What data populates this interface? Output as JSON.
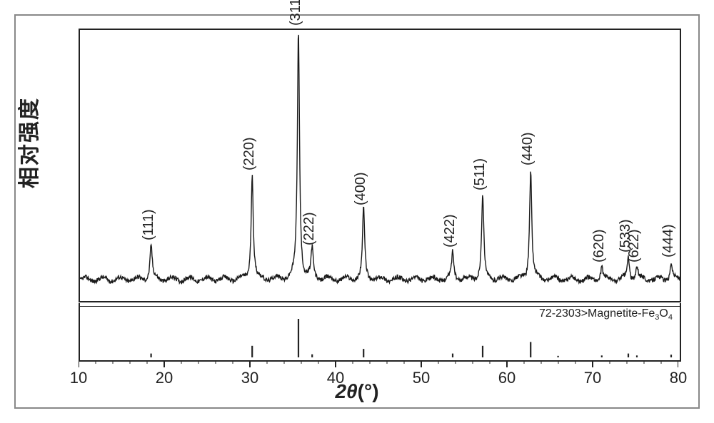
{
  "chart": {
    "type": "xrd",
    "title": "",
    "y_label": "相对强度",
    "x_label_prefix": "2",
    "x_label_theta": "θ",
    "x_label_unit": "(°)",
    "x_min": 10,
    "x_max": 80,
    "x_tick_step": 10,
    "x_ticks": [
      10,
      20,
      30,
      40,
      50,
      60,
      70,
      80
    ],
    "x_minor_step": 2,
    "line_color": "#1a1a1a",
    "line_width": 1.4,
    "background": "#ffffff",
    "border_color": "#222222",
    "baseline_y": 0.08,
    "noise_amp": 0.02,
    "peaks": [
      {
        "two_theta": 18.3,
        "height": 0.14,
        "label": "(111)"
      },
      {
        "two_theta": 30.1,
        "height": 0.42,
        "label": "(220)"
      },
      {
        "two_theta": 35.5,
        "height": 1.0,
        "label": "(311)"
      },
      {
        "two_theta": 37.1,
        "height": 0.12,
        "label": "(222)"
      },
      {
        "two_theta": 43.1,
        "height": 0.28,
        "label": "(400)"
      },
      {
        "two_theta": 53.5,
        "height": 0.11,
        "label": "(422)"
      },
      {
        "two_theta": 57.0,
        "height": 0.34,
        "label": "(511)"
      },
      {
        "two_theta": 62.6,
        "height": 0.44,
        "label": "(440)"
      },
      {
        "two_theta": 70.9,
        "height": 0.05,
        "label": "(620)"
      },
      {
        "two_theta": 74.0,
        "height": 0.09,
        "label": "(533)"
      },
      {
        "two_theta": 75.0,
        "height": 0.05,
        "label": "(622)"
      },
      {
        "two_theta": 79.0,
        "height": 0.07,
        "label": "(444)"
      }
    ],
    "peak_width": 0.3,
    "peak_label_fontsize": 20,
    "axis_label_fontsize": 28
  },
  "reference": {
    "label": "72-2303>Magnetite-Fe₃O₄",
    "label_html": "72-2303>Magnetite-Fe<sub>3</sub>O<sub>4</sub>",
    "color": "#222222",
    "sticks": [
      {
        "two_theta": 18.3,
        "height": 0.1
      },
      {
        "two_theta": 30.1,
        "height": 0.3
      },
      {
        "two_theta": 35.5,
        "height": 1.0
      },
      {
        "two_theta": 37.1,
        "height": 0.08
      },
      {
        "two_theta": 43.1,
        "height": 0.22
      },
      {
        "two_theta": 53.5,
        "height": 0.1
      },
      {
        "two_theta": 57.0,
        "height": 0.3
      },
      {
        "two_theta": 62.6,
        "height": 0.4
      },
      {
        "two_theta": 65.8,
        "height": 0.04
      },
      {
        "two_theta": 70.9,
        "height": 0.05
      },
      {
        "two_theta": 74.0,
        "height": 0.1
      },
      {
        "two_theta": 75.0,
        "height": 0.05
      },
      {
        "two_theta": 79.0,
        "height": 0.07
      }
    ]
  }
}
